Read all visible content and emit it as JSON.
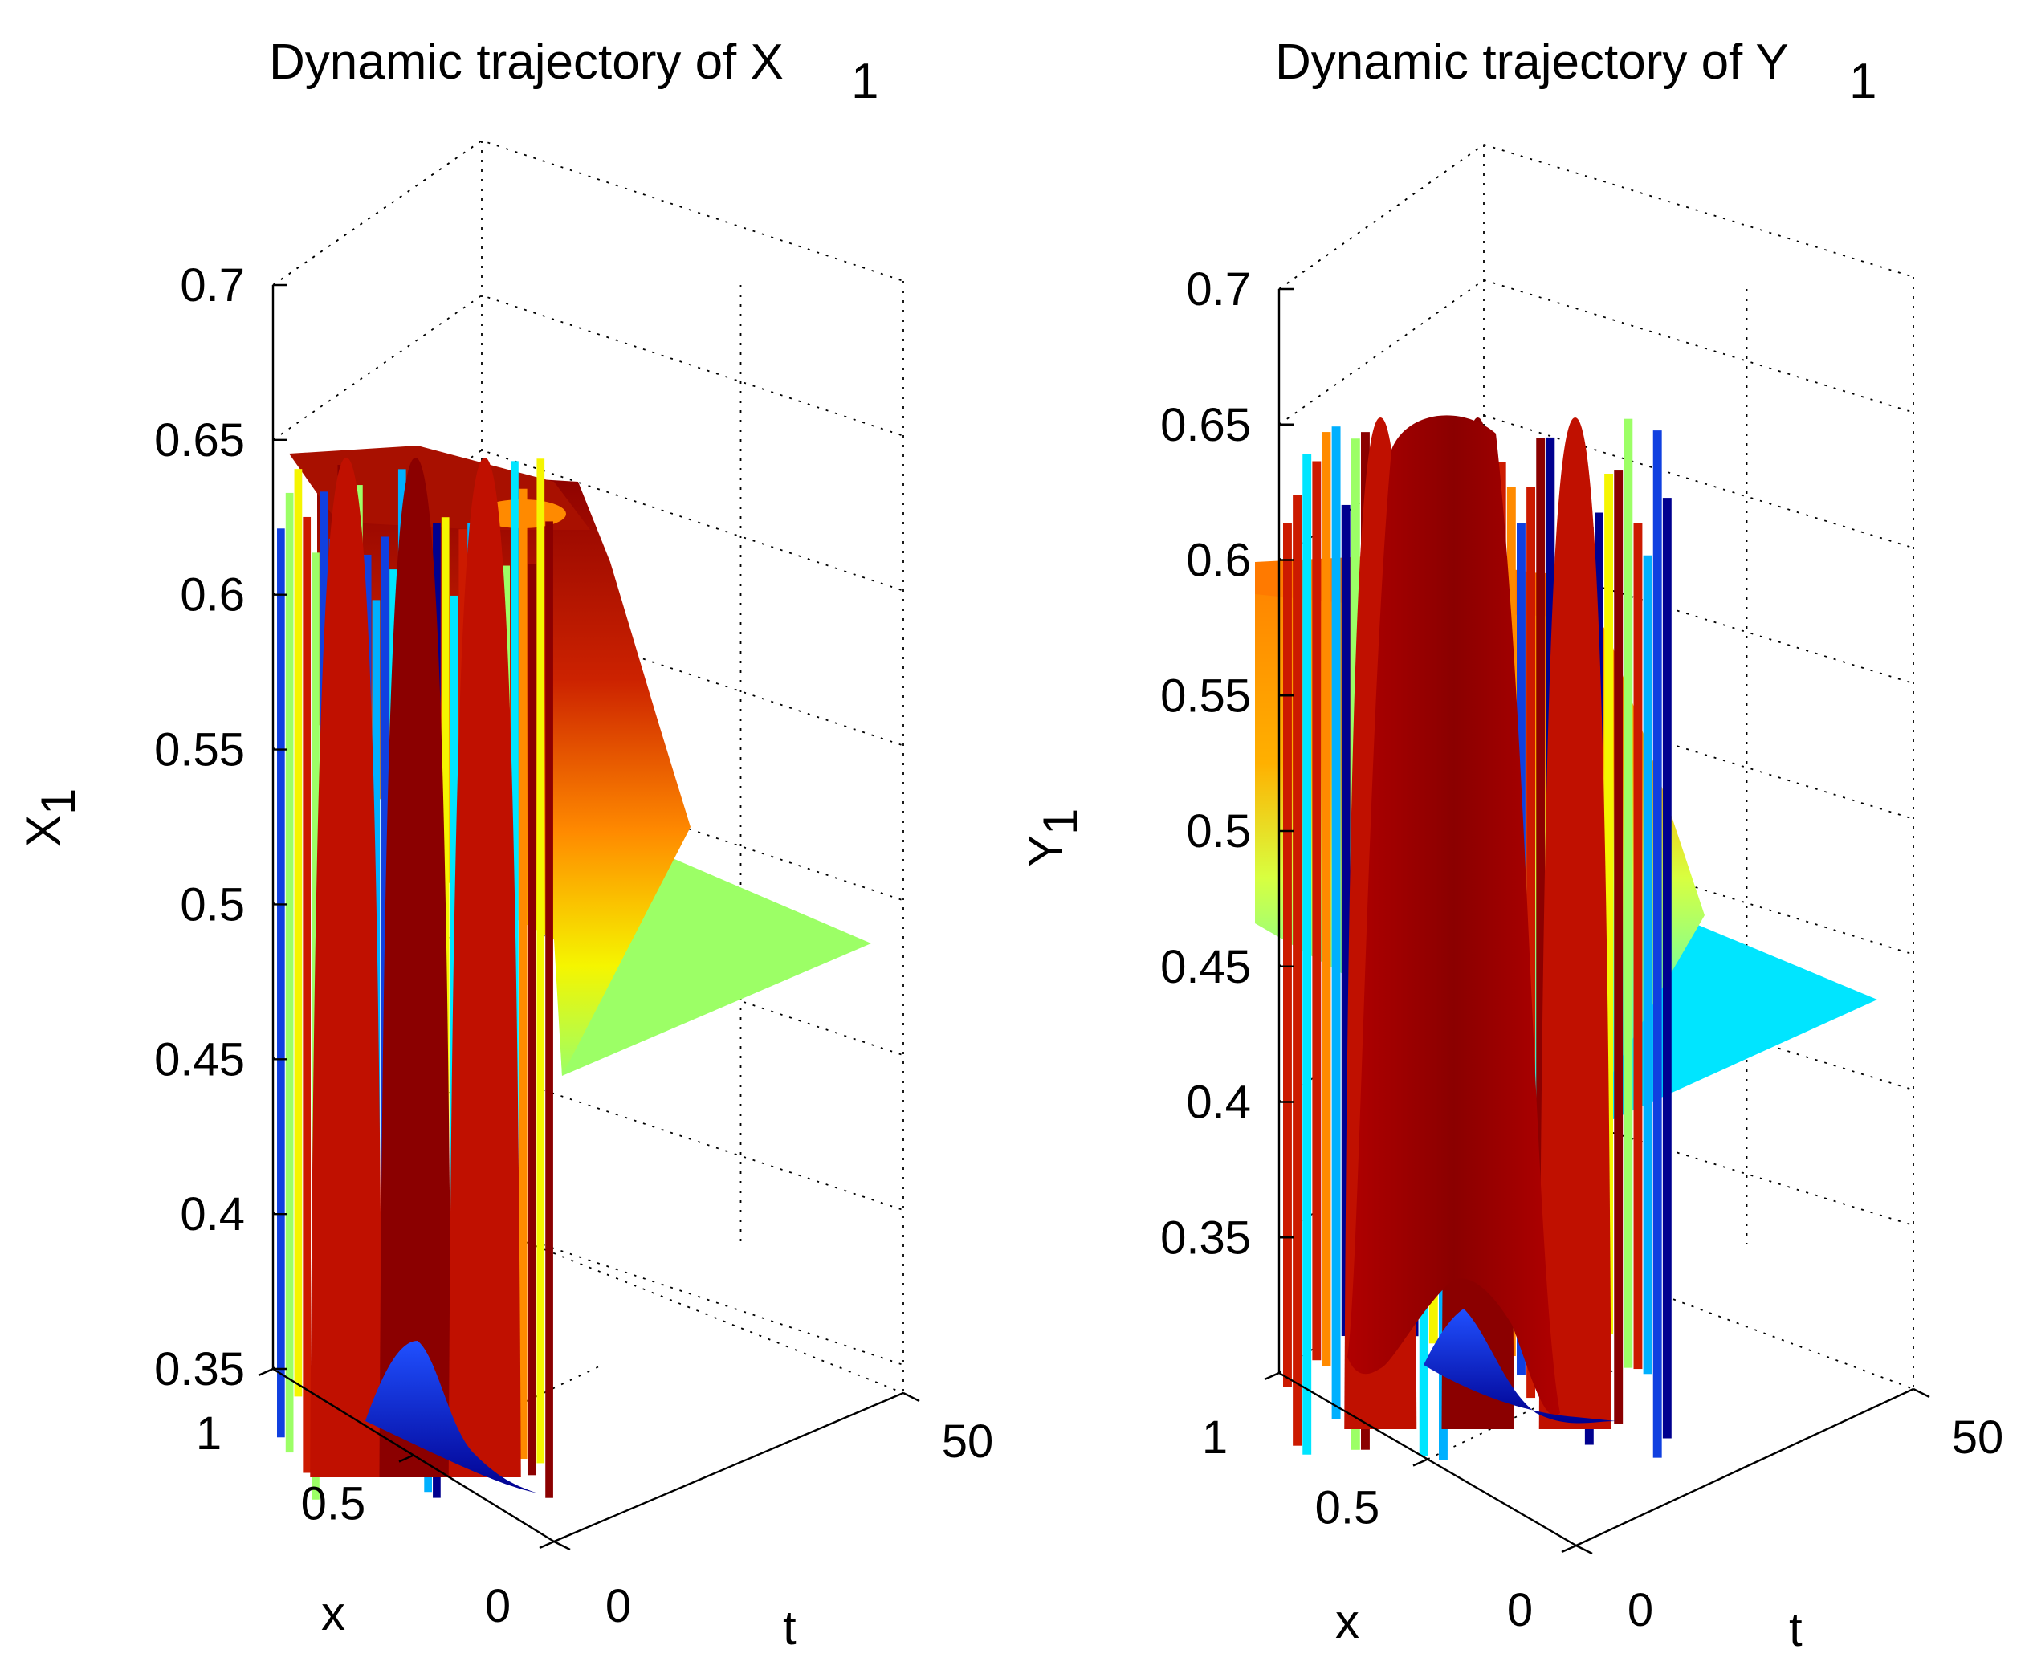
{
  "chart_data": [
    {
      "type": "surface3d",
      "title": "Dynamic trajectory of X",
      "title_subscript": "1",
      "xlabel": "x",
      "ylabel": "t",
      "zlabel": "X",
      "zlabel_subscript": "1",
      "x_range": [
        0,
        1
      ],
      "t_range": [
        0,
        50
      ],
      "zlim": [
        0.35,
        0.7
      ],
      "x_ticks": [
        "0",
        "0.5",
        "1"
      ],
      "t_ticks": [
        "0",
        "50"
      ],
      "z_ticks": [
        "0.35",
        "0.4",
        "0.45",
        "0.5",
        "0.55",
        "0.6",
        "0.65",
        "0.7"
      ],
      "z_tick_values": [
        0.35,
        0.4,
        0.45,
        0.5,
        0.55,
        0.6,
        0.65,
        0.7
      ],
      "steady_state": 0.5,
      "peak": 0.64,
      "colormap": "jet",
      "colors": {
        "dark_red": "#8b0000",
        "red": "#cc1a00",
        "orange": "#ff7f00",
        "yellow": "#f5f500",
        "light_green": "#9cff66",
        "cyan": "#00e5ff",
        "blue": "#1040e0",
        "dark_blue": "#00008f"
      }
    },
    {
      "type": "surface3d",
      "title": "Dynamic trajectory of Y",
      "title_subscript": "1",
      "xlabel": "x",
      "ylabel": "t",
      "zlabel": "Y",
      "zlabel_subscript": "1",
      "x_range": [
        0,
        1
      ],
      "t_range": [
        0,
        50
      ],
      "zlim": [
        0.3,
        0.7
      ],
      "x_ticks": [
        "0",
        "0.5",
        "1"
      ],
      "t_ticks": [
        "0",
        "50"
      ],
      "z_ticks": [
        "0.35",
        "0.4",
        "0.45",
        "0.5",
        "0.55",
        "0.6",
        "0.65",
        "0.7"
      ],
      "z_tick_values": [
        0.35,
        0.4,
        0.45,
        0.5,
        0.55,
        0.6,
        0.65,
        0.7
      ],
      "steady_state": 0.455,
      "peak": 0.655,
      "colormap": "jet",
      "colors": {
        "dark_red": "#8b0000",
        "red": "#cc1a00",
        "orange": "#ff7f00",
        "yellow": "#f5f500",
        "light_green": "#9cff66",
        "cyan": "#00e5ff",
        "blue": "#1040e0",
        "dark_blue": "#00008f"
      }
    }
  ]
}
